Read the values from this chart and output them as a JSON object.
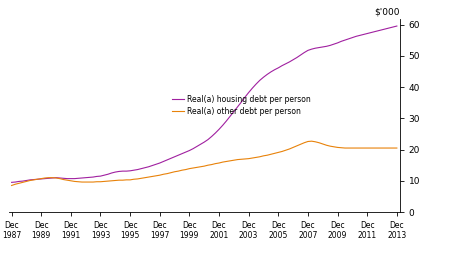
{
  "ylabel": "$’000",
  "ylim": [
    0,
    62
  ],
  "yticks": [
    0,
    10,
    20,
    30,
    40,
    50,
    60
  ],
  "xlim": [
    1987.75,
    2014.1
  ],
  "xtick_years": [
    1987,
    1989,
    1991,
    1993,
    1995,
    1997,
    1999,
    2001,
    2003,
    2005,
    2007,
    2009,
    2011,
    2013
  ],
  "housing_color": "#A020A0",
  "other_color": "#E8820A",
  "legend_labels": [
    "Real(a) housing debt per person",
    "Real(a) other debt per person"
  ],
  "housing_data": [
    [
      1987.92,
      9.5
    ],
    [
      1988.17,
      9.6
    ],
    [
      1988.42,
      9.8
    ],
    [
      1988.67,
      9.9
    ],
    [
      1988.92,
      10.1
    ],
    [
      1989.17,
      10.3
    ],
    [
      1989.42,
      10.4
    ],
    [
      1989.67,
      10.5
    ],
    [
      1989.92,
      10.6
    ],
    [
      1990.17,
      10.7
    ],
    [
      1990.42,
      10.8
    ],
    [
      1990.67,
      10.9
    ],
    [
      1990.92,
      11.0
    ],
    [
      1991.17,
      10.9
    ],
    [
      1991.42,
      10.8
    ],
    [
      1991.67,
      10.7
    ],
    [
      1991.92,
      10.7
    ],
    [
      1992.17,
      10.7
    ],
    [
      1992.42,
      10.8
    ],
    [
      1992.67,
      10.9
    ],
    [
      1992.92,
      11.0
    ],
    [
      1993.17,
      11.1
    ],
    [
      1993.42,
      11.2
    ],
    [
      1993.67,
      11.4
    ],
    [
      1993.92,
      11.5
    ],
    [
      1994.17,
      11.8
    ],
    [
      1994.42,
      12.1
    ],
    [
      1994.67,
      12.5
    ],
    [
      1994.92,
      12.8
    ],
    [
      1995.17,
      13.0
    ],
    [
      1995.42,
      13.1
    ],
    [
      1995.67,
      13.1
    ],
    [
      1995.92,
      13.2
    ],
    [
      1996.17,
      13.4
    ],
    [
      1996.42,
      13.6
    ],
    [
      1996.67,
      13.9
    ],
    [
      1996.92,
      14.2
    ],
    [
      1997.17,
      14.5
    ],
    [
      1997.42,
      14.9
    ],
    [
      1997.67,
      15.3
    ],
    [
      1997.92,
      15.7
    ],
    [
      1998.17,
      16.2
    ],
    [
      1998.42,
      16.7
    ],
    [
      1998.67,
      17.2
    ],
    [
      1998.92,
      17.7
    ],
    [
      1999.17,
      18.2
    ],
    [
      1999.42,
      18.7
    ],
    [
      1999.67,
      19.2
    ],
    [
      1999.92,
      19.7
    ],
    [
      2000.17,
      20.3
    ],
    [
      2000.42,
      21.0
    ],
    [
      2000.67,
      21.7
    ],
    [
      2000.92,
      22.4
    ],
    [
      2001.17,
      23.2
    ],
    [
      2001.42,
      24.2
    ],
    [
      2001.67,
      25.3
    ],
    [
      2001.92,
      26.5
    ],
    [
      2002.17,
      27.8
    ],
    [
      2002.42,
      29.2
    ],
    [
      2002.67,
      30.7
    ],
    [
      2002.92,
      32.2
    ],
    [
      2003.17,
      33.7
    ],
    [
      2003.42,
      35.2
    ],
    [
      2003.67,
      36.8
    ],
    [
      2003.92,
      38.3
    ],
    [
      2004.17,
      39.7
    ],
    [
      2004.42,
      41.0
    ],
    [
      2004.67,
      42.2
    ],
    [
      2004.92,
      43.2
    ],
    [
      2005.17,
      44.1
    ],
    [
      2005.42,
      44.9
    ],
    [
      2005.67,
      45.6
    ],
    [
      2005.92,
      46.2
    ],
    [
      2006.17,
      46.9
    ],
    [
      2006.42,
      47.5
    ],
    [
      2006.67,
      48.1
    ],
    [
      2006.92,
      48.8
    ],
    [
      2007.17,
      49.5
    ],
    [
      2007.42,
      50.3
    ],
    [
      2007.67,
      51.1
    ],
    [
      2007.92,
      51.8
    ],
    [
      2008.17,
      52.2
    ],
    [
      2008.42,
      52.5
    ],
    [
      2008.67,
      52.7
    ],
    [
      2008.92,
      52.9
    ],
    [
      2009.17,
      53.1
    ],
    [
      2009.42,
      53.4
    ],
    [
      2009.67,
      53.8
    ],
    [
      2009.92,
      54.2
    ],
    [
      2010.17,
      54.7
    ],
    [
      2010.42,
      55.1
    ],
    [
      2010.67,
      55.5
    ],
    [
      2010.92,
      55.9
    ],
    [
      2011.17,
      56.3
    ],
    [
      2011.42,
      56.6
    ],
    [
      2011.67,
      56.9
    ],
    [
      2011.92,
      57.2
    ],
    [
      2012.17,
      57.5
    ],
    [
      2012.42,
      57.8
    ],
    [
      2012.67,
      58.1
    ],
    [
      2012.92,
      58.4
    ],
    [
      2013.17,
      58.7
    ],
    [
      2013.42,
      59.0
    ],
    [
      2013.67,
      59.3
    ],
    [
      2013.92,
      59.6
    ]
  ],
  "other_data": [
    [
      1987.92,
      8.5
    ],
    [
      1988.17,
      8.9
    ],
    [
      1988.42,
      9.2
    ],
    [
      1988.67,
      9.5
    ],
    [
      1988.92,
      9.8
    ],
    [
      1989.17,
      10.1
    ],
    [
      1989.42,
      10.3
    ],
    [
      1989.67,
      10.5
    ],
    [
      1989.92,
      10.7
    ],
    [
      1990.17,
      10.9
    ],
    [
      1990.42,
      11.0
    ],
    [
      1990.67,
      11.0
    ],
    [
      1990.92,
      10.9
    ],
    [
      1991.17,
      10.7
    ],
    [
      1991.42,
      10.4
    ],
    [
      1991.67,
      10.2
    ],
    [
      1991.92,
      10.0
    ],
    [
      1992.17,
      9.8
    ],
    [
      1992.42,
      9.7
    ],
    [
      1992.67,
      9.6
    ],
    [
      1992.92,
      9.6
    ],
    [
      1993.17,
      9.6
    ],
    [
      1993.42,
      9.6
    ],
    [
      1993.67,
      9.7
    ],
    [
      1993.92,
      9.7
    ],
    [
      1994.17,
      9.8
    ],
    [
      1994.42,
      9.9
    ],
    [
      1994.67,
      10.0
    ],
    [
      1994.92,
      10.1
    ],
    [
      1995.17,
      10.2
    ],
    [
      1995.42,
      10.2
    ],
    [
      1995.67,
      10.3
    ],
    [
      1995.92,
      10.3
    ],
    [
      1996.17,
      10.5
    ],
    [
      1996.42,
      10.6
    ],
    [
      1996.67,
      10.8
    ],
    [
      1996.92,
      11.0
    ],
    [
      1997.17,
      11.2
    ],
    [
      1997.42,
      11.4
    ],
    [
      1997.67,
      11.6
    ],
    [
      1997.92,
      11.8
    ],
    [
      1998.17,
      12.1
    ],
    [
      1998.42,
      12.3
    ],
    [
      1998.67,
      12.6
    ],
    [
      1998.92,
      12.9
    ],
    [
      1999.17,
      13.1
    ],
    [
      1999.42,
      13.4
    ],
    [
      1999.67,
      13.6
    ],
    [
      1999.92,
      13.9
    ],
    [
      2000.17,
      14.1
    ],
    [
      2000.42,
      14.3
    ],
    [
      2000.67,
      14.5
    ],
    [
      2000.92,
      14.7
    ],
    [
      2001.17,
      15.0
    ],
    [
      2001.42,
      15.2
    ],
    [
      2001.67,
      15.5
    ],
    [
      2001.92,
      15.7
    ],
    [
      2002.17,
      16.0
    ],
    [
      2002.42,
      16.2
    ],
    [
      2002.67,
      16.4
    ],
    [
      2002.92,
      16.6
    ],
    [
      2003.17,
      16.8
    ],
    [
      2003.42,
      16.9
    ],
    [
      2003.67,
      17.0
    ],
    [
      2003.92,
      17.1
    ],
    [
      2004.17,
      17.3
    ],
    [
      2004.42,
      17.5
    ],
    [
      2004.67,
      17.7
    ],
    [
      2004.92,
      18.0
    ],
    [
      2005.17,
      18.2
    ],
    [
      2005.42,
      18.5
    ],
    [
      2005.67,
      18.8
    ],
    [
      2005.92,
      19.1
    ],
    [
      2006.17,
      19.4
    ],
    [
      2006.42,
      19.8
    ],
    [
      2006.67,
      20.2
    ],
    [
      2006.92,
      20.7
    ],
    [
      2007.17,
      21.2
    ],
    [
      2007.42,
      21.7
    ],
    [
      2007.67,
      22.2
    ],
    [
      2007.92,
      22.6
    ],
    [
      2008.17,
      22.7
    ],
    [
      2008.42,
      22.5
    ],
    [
      2008.67,
      22.2
    ],
    [
      2008.92,
      21.8
    ],
    [
      2009.17,
      21.4
    ],
    [
      2009.42,
      21.1
    ],
    [
      2009.67,
      20.9
    ],
    [
      2009.92,
      20.7
    ],
    [
      2010.17,
      20.6
    ],
    [
      2010.42,
      20.5
    ],
    [
      2010.67,
      20.5
    ],
    [
      2010.92,
      20.5
    ],
    [
      2011.17,
      20.5
    ],
    [
      2011.42,
      20.5
    ],
    [
      2011.67,
      20.5
    ],
    [
      2011.92,
      20.5
    ],
    [
      2012.17,
      20.5
    ],
    [
      2012.42,
      20.5
    ],
    [
      2012.67,
      20.5
    ],
    [
      2012.92,
      20.5
    ],
    [
      2013.17,
      20.5
    ],
    [
      2013.42,
      20.5
    ],
    [
      2013.67,
      20.5
    ],
    [
      2013.92,
      20.5
    ]
  ]
}
